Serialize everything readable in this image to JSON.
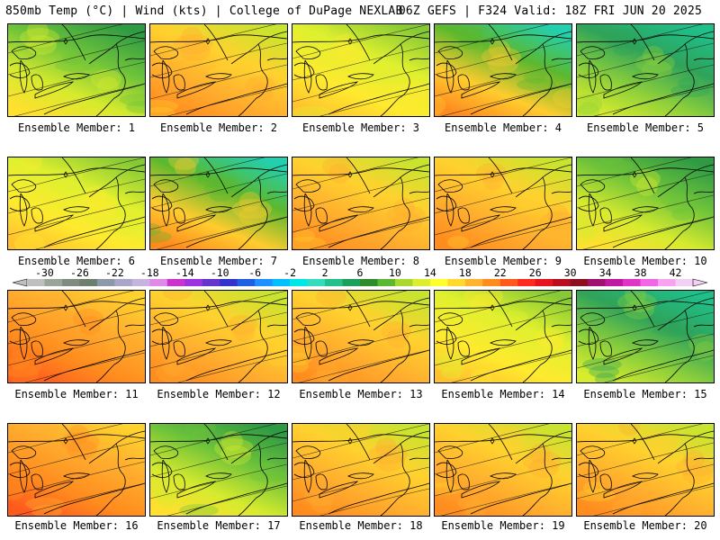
{
  "header": {
    "left": "850mb Temp (°C) | Wind (kts) | College of DuPage NEXLAB",
    "right": "06Z GEFS | F324 Valid: 18Z FRI JUN 20 2025"
  },
  "colorbar": {
    "tick_labels": [
      "-30",
      "-26",
      "-22",
      "-18",
      "-14",
      "-10",
      "-6",
      "-2",
      "2",
      "6",
      "10",
      "14",
      "18",
      "22",
      "26",
      "30",
      "34",
      "38",
      "42"
    ],
    "colors": [
      "#bfbfbf",
      "#9aa59a",
      "#7f8c7f",
      "#6e7f6e",
      "#8d98a8",
      "#a9a6c9",
      "#c7b3e0",
      "#e08ae8",
      "#cc33cc",
      "#9b33e0",
      "#6633cc",
      "#3333cc",
      "#1f5fe0",
      "#1e90ff",
      "#00bfff",
      "#00e5e5",
      "#33ddbb",
      "#22c08a",
      "#1aa05a",
      "#2e8b2e",
      "#5cb82e",
      "#a8d82e",
      "#dcef2e",
      "#ffff2e",
      "#ffd92e",
      "#ffb32e",
      "#ff8c1e",
      "#ff5a1e",
      "#ff2a1e",
      "#e6141e",
      "#b80f1e",
      "#8b0f1e",
      "#a0106e",
      "#c018a0",
      "#e033c8",
      "#f266e6",
      "#f7a3f0",
      "#f2d0f2"
    ]
  },
  "panel_label_prefix": "Ensemble Member:",
  "members": [
    {
      "label": "Ensemble Member: 1",
      "mood": "cool"
    },
    {
      "label": "Ensemble Member: 2",
      "mood": "warm"
    },
    {
      "label": "Ensemble Member: 3",
      "mood": "mild"
    },
    {
      "label": "Ensemble Member: 4",
      "mood": "mixed"
    },
    {
      "label": "Ensemble Member: 5",
      "mood": "cold"
    },
    {
      "label": "Ensemble Member: 6",
      "mood": "mild"
    },
    {
      "label": "Ensemble Member: 7",
      "mood": "mixed"
    },
    {
      "label": "Ensemble Member: 8",
      "mood": "warm"
    },
    {
      "label": "Ensemble Member: 9",
      "mood": "warm"
    },
    {
      "label": "Ensemble Member: 10",
      "mood": "cool"
    },
    {
      "label": "Ensemble Member: 11",
      "mood": "hot"
    },
    {
      "label": "Ensemble Member: 12",
      "mood": "warm"
    },
    {
      "label": "Ensemble Member: 13",
      "mood": "warm"
    },
    {
      "label": "Ensemble Member: 14",
      "mood": "mild"
    },
    {
      "label": "Ensemble Member: 15",
      "mood": "cold"
    },
    {
      "label": "Ensemble Member: 16",
      "mood": "hot"
    },
    {
      "label": "Ensemble Member: 17",
      "mood": "cool"
    },
    {
      "label": "Ensemble Member: 18",
      "mood": "warm"
    },
    {
      "label": "Ensemble Member: 19",
      "mood": "warm"
    },
    {
      "label": "Ensemble Member: 20",
      "mood": "warm"
    }
  ]
}
